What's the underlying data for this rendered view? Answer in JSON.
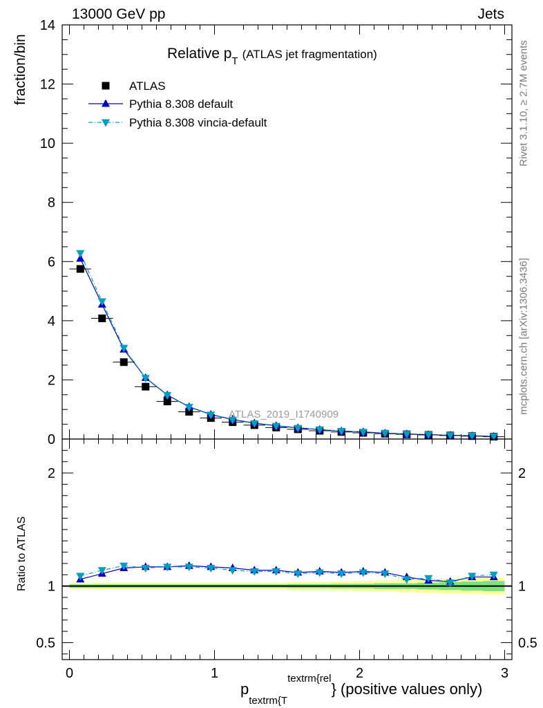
{
  "header": {
    "left": "13000 GeV pp",
    "right": "Jets"
  },
  "chart_data": [
    {
      "type": "scatter",
      "title_main": "Relative p",
      "title_sub": "T",
      "title_tail": "(ATLAS jet fragmentation)",
      "ylabel": "fraction/bin",
      "ylim": [
        0,
        14
      ],
      "yticks": [
        "0",
        "2",
        "4",
        "6",
        "8",
        "10",
        "12",
        "14"
      ],
      "analysis_id": "ATLAS_2019_I1740909",
      "legend_position": "top-left",
      "x": [
        0.075,
        0.225,
        0.375,
        0.525,
        0.675,
        0.825,
        0.975,
        1.125,
        1.275,
        1.425,
        1.575,
        1.725,
        1.875,
        2.025,
        2.175,
        2.325,
        2.475,
        2.625,
        2.775,
        2.925
      ],
      "series": [
        {
          "name": "ATLAS",
          "color": "#000000",
          "marker": "square",
          "values": [
            5.75,
            4.08,
            2.6,
            1.77,
            1.27,
            0.92,
            0.71,
            0.57,
            0.47,
            0.39,
            0.33,
            0.28,
            0.24,
            0.21,
            0.18,
            0.16,
            0.14,
            0.12,
            0.1,
            0.08
          ]
        },
        {
          "name": "Pythia 8.308 default",
          "color": "#0000cc",
          "marker": "triangle-up",
          "line": "solid",
          "values": [
            6.1,
            4.55,
            3.03,
            2.07,
            1.49,
            1.09,
            0.83,
            0.66,
            0.54,
            0.45,
            0.38,
            0.32,
            0.27,
            0.24,
            0.2,
            0.17,
            0.15,
            0.125,
            0.11,
            0.09
          ]
        },
        {
          "name": "Pythia 8.308 vincia-default",
          "color": "#009fc2",
          "marker": "triangle-down",
          "line": "dashdot",
          "values": [
            6.28,
            4.65,
            3.08,
            2.06,
            1.48,
            1.08,
            0.82,
            0.65,
            0.53,
            0.44,
            0.37,
            0.32,
            0.27,
            0.24,
            0.2,
            0.17,
            0.15,
            0.125,
            0.11,
            0.09
          ]
        }
      ]
    },
    {
      "type": "scatter",
      "ylabel": "Ratio to ATLAS",
      "xlabel_main": "p",
      "xlabel_sub": "textrm{T",
      "xlabel_sup": "textrm{rel",
      "xlabel_tail": "} (positive values only)",
      "xlim": [
        -0.05,
        3.05
      ],
      "xticks": [
        "0",
        "1",
        "2",
        "3"
      ],
      "ylim": [
        0.35,
        2.3
      ],
      "yticks": [
        "0.5",
        "1",
        "2"
      ],
      "x": [
        0.075,
        0.225,
        0.375,
        0.525,
        0.675,
        0.825,
        0.975,
        1.125,
        1.275,
        1.425,
        1.575,
        1.725,
        1.875,
        2.025,
        2.175,
        2.325,
        2.475,
        2.625,
        2.775,
        2.925
      ],
      "series": [
        {
          "name": "Pythia 8.308 default",
          "color": "#0000cc",
          "marker": "triangle-up",
          "line": "solid",
          "values": [
            1.06,
            1.11,
            1.16,
            1.17,
            1.17,
            1.18,
            1.17,
            1.16,
            1.14,
            1.14,
            1.12,
            1.13,
            1.12,
            1.13,
            1.12,
            1.08,
            1.05,
            1.04,
            1.08,
            1.08
          ]
        },
        {
          "name": "Pythia 8.308 vincia-default",
          "color": "#009fc2",
          "marker": "triangle-down",
          "line": "dashdot",
          "values": [
            1.09,
            1.14,
            1.18,
            1.16,
            1.17,
            1.17,
            1.16,
            1.14,
            1.13,
            1.13,
            1.11,
            1.12,
            1.11,
            1.12,
            1.11,
            1.06,
            1.07,
            1.03,
            1.09,
            1.1
          ]
        }
      ],
      "uncertainty": {
        "inner_color": "#7fe07f",
        "outer_color": "#ffff99",
        "inner_halfwidth": [
          0.015,
          0.015,
          0.015,
          0.015,
          0.015,
          0.015,
          0.015,
          0.015,
          0.015,
          0.015,
          0.018,
          0.018,
          0.02,
          0.02,
          0.025,
          0.025,
          0.03,
          0.035,
          0.04,
          0.045
        ],
        "outer_halfwidth": [
          0.025,
          0.03,
          0.03,
          0.03,
          0.03,
          0.03,
          0.03,
          0.03,
          0.03,
          0.03,
          0.035,
          0.035,
          0.04,
          0.045,
          0.05,
          0.055,
          0.06,
          0.065,
          0.07,
          0.075
        ]
      }
    }
  ],
  "side_labels": {
    "rivet": "Rivet 3.1.10, ≥ 2.7M events",
    "mcplots": "mcplots.cern.ch [arXiv:1306.3436]"
  }
}
